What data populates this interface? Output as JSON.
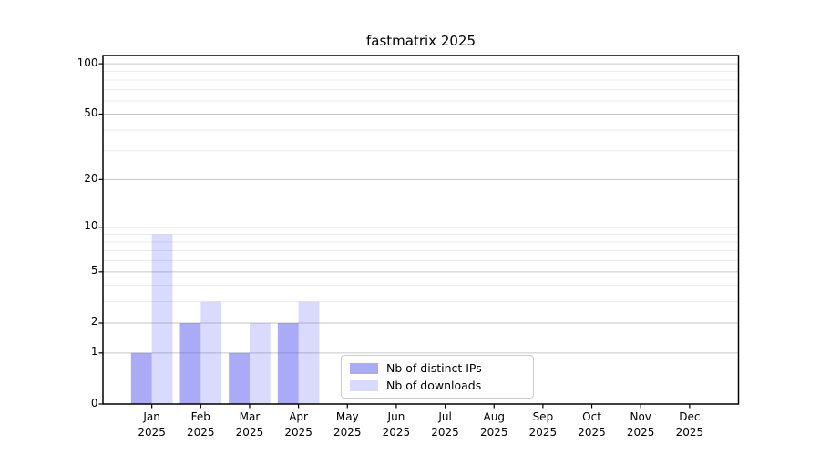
{
  "chart_data": {
    "type": "bar",
    "title": "fastmatrix 2025",
    "categories": [
      "Jan",
      "Feb",
      "Mar",
      "Apr",
      "May",
      "Jun",
      "Jul",
      "Aug",
      "Sep",
      "Oct",
      "Nov",
      "Dec"
    ],
    "category_year": "2025",
    "series": [
      {
        "name": "Nb of distinct IPs",
        "values": [
          1,
          2,
          1,
          2,
          0,
          0,
          0,
          0,
          0,
          0,
          0,
          0
        ],
        "fill": "rgba(85,85,240,0.5)"
      },
      {
        "name": "Nb of downloads",
        "values": [
          9,
          3,
          2,
          3,
          0,
          0,
          0,
          0,
          0,
          0,
          0,
          0
        ],
        "fill": "rgba(85,85,240,0.22)"
      }
    ],
    "yscale": "log1p",
    "ylim": [
      0,
      112
    ],
    "yticks": [
      0,
      1,
      2,
      5,
      10,
      20,
      50,
      100
    ],
    "yticks_minor": [
      3,
      4,
      6,
      7,
      8,
      9,
      30,
      40,
      60,
      70,
      80,
      90
    ],
    "xlabel": "",
    "ylabel": "",
    "grid": true,
    "legend_position": "lower center",
    "colors": {
      "grid_major": "#c6c6c6",
      "grid_minor": "#ebebeb",
      "axis": "#000000",
      "legend_border": "#cccccc",
      "background": "#ffffff",
      "text": "#000000"
    }
  }
}
